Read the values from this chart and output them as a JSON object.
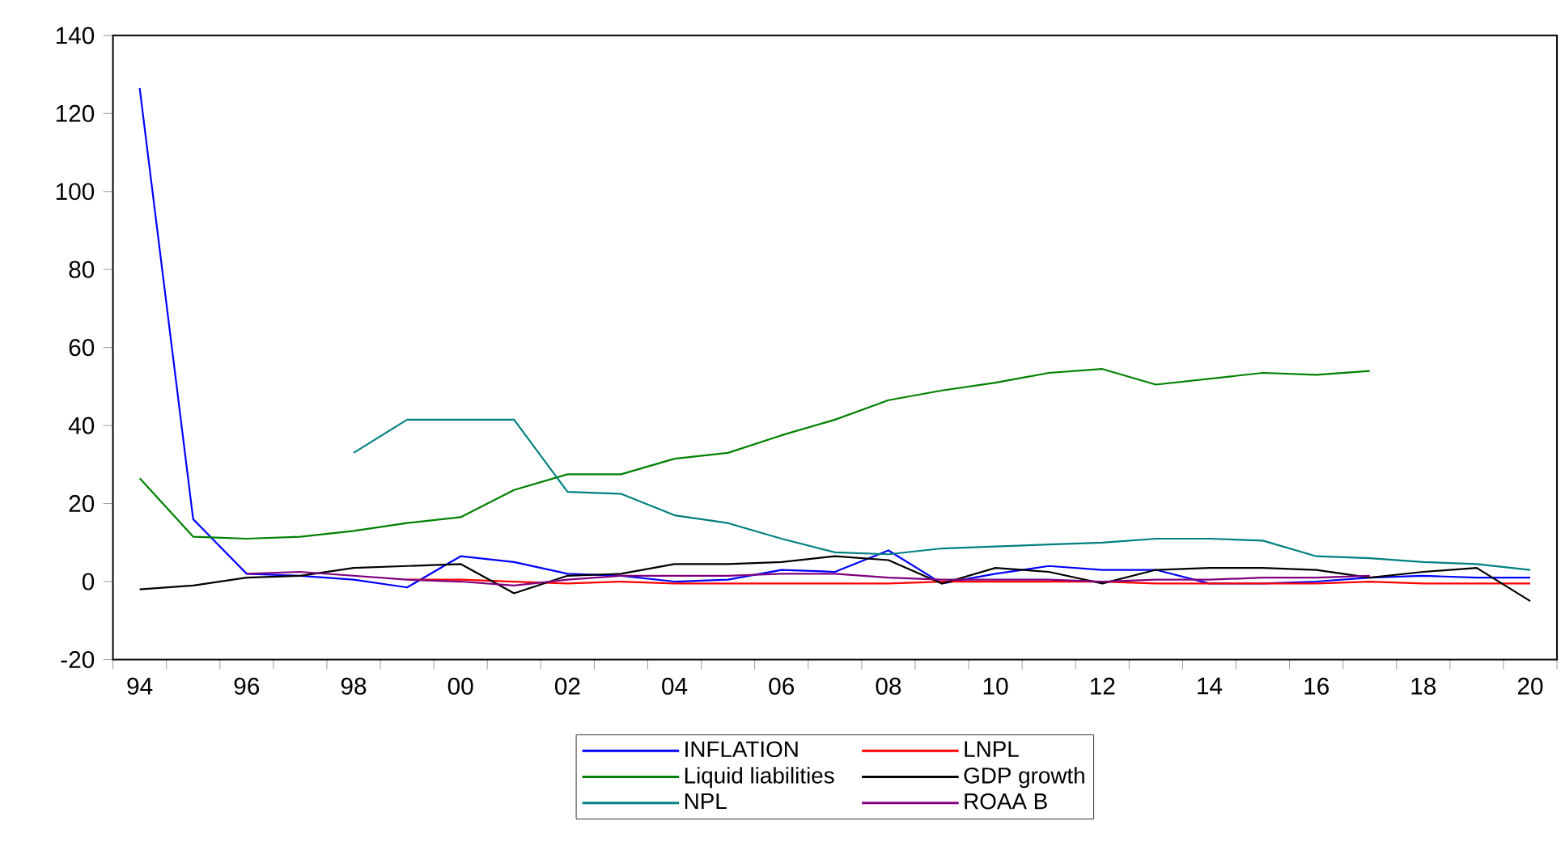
{
  "chart_data": {
    "type": "line",
    "x": [
      1994,
      1995,
      1996,
      1997,
      1998,
      1999,
      2000,
      2001,
      2002,
      2003,
      2004,
      2005,
      2006,
      2007,
      2008,
      2009,
      2010,
      2011,
      2012,
      2013,
      2014,
      2015,
      2016,
      2017,
      2018,
      2019,
      2020
    ],
    "series": [
      {
        "name": "INFLATION",
        "color": "#0000ff",
        "values": [
          126.5,
          16,
          2,
          1.5,
          0.5,
          -1.5,
          6.5,
          5,
          2,
          1.5,
          0,
          0.5,
          3,
          2.5,
          8,
          -0.5,
          2,
          4,
          3,
          3,
          -0.5,
          -0.5,
          0,
          1,
          1.5,
          1,
          1
        ]
      },
      {
        "name": "LNPL",
        "color": "#ff0000",
        "values": [
          null,
          null,
          null,
          null,
          null,
          0.5,
          0.5,
          0,
          -0.5,
          0,
          -0.5,
          -0.5,
          -0.5,
          -0.5,
          -0.5,
          0,
          0,
          0,
          0,
          -0.5,
          -0.5,
          -0.5,
          -0.5,
          0,
          -0.5,
          -0.5,
          -0.5
        ]
      },
      {
        "name": "Liquid liabilities",
        "color": "#008000",
        "values": [
          26.5,
          11.5,
          11,
          11.5,
          13,
          15,
          16.5,
          23.5,
          27.5,
          27.5,
          31.5,
          33,
          37.5,
          41.5,
          46.5,
          49,
          51,
          53.5,
          54.5,
          50.5,
          52,
          53.5,
          53,
          54,
          null,
          null,
          null
        ]
      },
      {
        "name": "GDP growth",
        "color": "#000000",
        "values": [
          -2,
          -1,
          1,
          1.5,
          3.5,
          4,
          4.5,
          -3,
          1.5,
          2,
          4.5,
          4.5,
          5,
          6.5,
          5.5,
          -0.5,
          3.5,
          2.5,
          -0.5,
          3,
          3.5,
          3.5,
          3,
          1,
          2.5,
          3.5,
          -5
        ]
      },
      {
        "name": "NPL",
        "color": "#008080",
        "values": [
          null,
          null,
          null,
          null,
          33,
          41.5,
          41.5,
          41.5,
          23,
          22.5,
          17,
          15,
          11,
          7.5,
          7,
          8.5,
          9,
          9.5,
          10,
          11,
          11,
          10.5,
          6.5,
          6,
          5,
          4.5,
          3
        ]
      },
      {
        "name": "ROAA B",
        "color": "#800080",
        "values": [
          null,
          null,
          2,
          2.5,
          1.5,
          0.5,
          0,
          -1,
          0.5,
          1.5,
          1.5,
          1.5,
          2,
          2,
          1,
          0.5,
          0.5,
          0.5,
          0,
          0.5,
          0.5,
          1,
          1,
          1.5,
          null,
          null,
          null
        ]
      }
    ],
    "xlim": [
      1993.5,
      2020.5
    ],
    "xticks": [
      {
        "value": 1994,
        "label": "94"
      },
      {
        "value": 1996,
        "label": "96"
      },
      {
        "value": 1998,
        "label": "98"
      },
      {
        "value": 2000,
        "label": "00"
      },
      {
        "value": 2002,
        "label": "02"
      },
      {
        "value": 2004,
        "label": "04"
      },
      {
        "value": 2006,
        "label": "06"
      },
      {
        "value": 2008,
        "label": "08"
      },
      {
        "value": 2010,
        "label": "10"
      },
      {
        "value": 2012,
        "label": "12"
      },
      {
        "value": 2014,
        "label": "14"
      },
      {
        "value": 2016,
        "label": "16"
      },
      {
        "value": 2018,
        "label": "18"
      },
      {
        "value": 2020,
        "label": "20"
      },
      {
        "value": 1993.5,
        "label": null
      },
      {
        "value": 1994.5,
        "label": null
      },
      {
        "value": 1995.5,
        "label": null
      },
      {
        "value": 1996.5,
        "label": null
      },
      {
        "value": 1997.5,
        "label": null
      },
      {
        "value": 1998.5,
        "label": null
      },
      {
        "value": 1999.5,
        "label": null
      },
      {
        "value": 2000.5,
        "label": null
      },
      {
        "value": 2001.5,
        "label": null
      },
      {
        "value": 2002.5,
        "label": null
      },
      {
        "value": 2003.5,
        "label": null
      },
      {
        "value": 2004.5,
        "label": null
      },
      {
        "value": 2005.5,
        "label": null
      },
      {
        "value": 2006.5,
        "label": null
      },
      {
        "value": 2007.5,
        "label": null
      },
      {
        "value": 2008.5,
        "label": null
      },
      {
        "value": 2009.5,
        "label": null
      },
      {
        "value": 2010.5,
        "label": null
      },
      {
        "value": 2011.5,
        "label": null
      },
      {
        "value": 2012.5,
        "label": null
      },
      {
        "value": 2013.5,
        "label": null
      },
      {
        "value": 2014.5,
        "label": null
      },
      {
        "value": 2015.5,
        "label": null
      },
      {
        "value": 2016.5,
        "label": null
      },
      {
        "value": 2017.5,
        "label": null
      },
      {
        "value": 2018.5,
        "label": null
      },
      {
        "value": 2019.5,
        "label": null
      },
      {
        "value": 2020.5,
        "label": null
      }
    ],
    "ylim": [
      -20,
      140
    ],
    "yticks": [
      -20,
      0,
      20,
      40,
      60,
      80,
      100,
      120,
      140
    ],
    "legend": "bottom",
    "grid": false,
    "line_style": "solid"
  }
}
